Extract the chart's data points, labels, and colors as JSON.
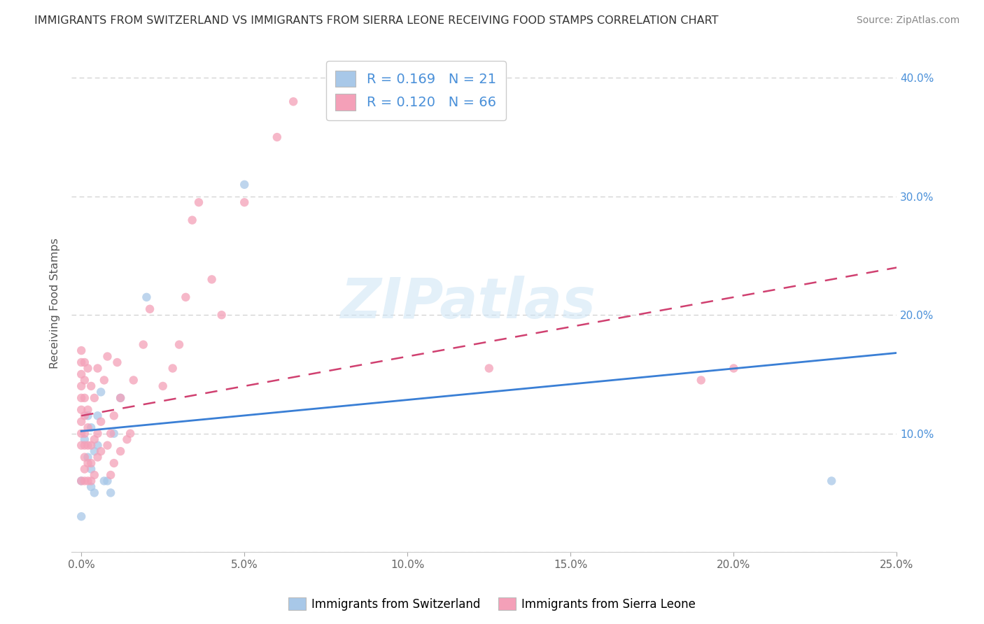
{
  "title": "IMMIGRANTS FROM SWITZERLAND VS IMMIGRANTS FROM SIERRA LEONE RECEIVING FOOD STAMPS CORRELATION CHART",
  "source": "Source: ZipAtlas.com",
  "ylabel": "Receiving Food Stamps",
  "xlabel_switzerland": "Immigrants from Switzerland",
  "xlabel_sierraleone": "Immigrants from Sierra Leone",
  "xlim": [
    0.0,
    0.25
  ],
  "ylim": [
    0.0,
    0.42
  ],
  "xticks": [
    0.0,
    0.05,
    0.1,
    0.15,
    0.2,
    0.25
  ],
  "yticks": [
    0.0,
    0.1,
    0.2,
    0.3,
    0.4
  ],
  "ytick_labels_right": [
    "",
    "10.0%",
    "20.0%",
    "30.0%",
    "40.0%"
  ],
  "xtick_labels": [
    "0.0%",
    "5.0%",
    "10.0%",
    "15.0%",
    "20.0%",
    "25.0%"
  ],
  "r_switzerland": 0.169,
  "n_switzerland": 21,
  "r_sierraleone": 0.12,
  "n_sierraleone": 66,
  "color_switzerland": "#a8c8e8",
  "color_sierraleone": "#f4a0b8",
  "line_color_switzerland": "#3a7fd5",
  "line_color_sierraleone": "#d04070",
  "watermark": "ZIPatlas",
  "switzerland_scatter_x": [
    0.0,
    0.0,
    0.001,
    0.002,
    0.002,
    0.003,
    0.003,
    0.003,
    0.004,
    0.004,
    0.005,
    0.005,
    0.006,
    0.007,
    0.008,
    0.009,
    0.01,
    0.012,
    0.02,
    0.05,
    0.23
  ],
  "switzerland_scatter_y": [
    0.06,
    0.03,
    0.095,
    0.115,
    0.08,
    0.105,
    0.07,
    0.055,
    0.085,
    0.05,
    0.115,
    0.09,
    0.135,
    0.06,
    0.06,
    0.05,
    0.1,
    0.13,
    0.215,
    0.31,
    0.06
  ],
  "sierraleone_scatter_x": [
    0.0,
    0.0,
    0.0,
    0.0,
    0.0,
    0.0,
    0.0,
    0.0,
    0.0,
    0.0,
    0.001,
    0.001,
    0.001,
    0.001,
    0.001,
    0.001,
    0.001,
    0.001,
    0.001,
    0.002,
    0.002,
    0.002,
    0.002,
    0.002,
    0.002,
    0.003,
    0.003,
    0.003,
    0.003,
    0.004,
    0.004,
    0.004,
    0.005,
    0.005,
    0.005,
    0.006,
    0.006,
    0.007,
    0.008,
    0.008,
    0.009,
    0.009,
    0.01,
    0.01,
    0.011,
    0.012,
    0.012,
    0.014,
    0.015,
    0.016,
    0.019,
    0.021,
    0.025,
    0.028,
    0.03,
    0.032,
    0.034,
    0.036,
    0.04,
    0.043,
    0.05,
    0.06,
    0.065,
    0.125,
    0.19,
    0.2
  ],
  "sierraleone_scatter_y": [
    0.09,
    0.1,
    0.11,
    0.12,
    0.13,
    0.14,
    0.15,
    0.16,
    0.17,
    0.06,
    0.06,
    0.07,
    0.08,
    0.09,
    0.1,
    0.115,
    0.13,
    0.145,
    0.16,
    0.06,
    0.075,
    0.09,
    0.105,
    0.12,
    0.155,
    0.06,
    0.075,
    0.09,
    0.14,
    0.065,
    0.095,
    0.13,
    0.08,
    0.1,
    0.155,
    0.085,
    0.11,
    0.145,
    0.09,
    0.165,
    0.065,
    0.1,
    0.075,
    0.115,
    0.16,
    0.085,
    0.13,
    0.095,
    0.1,
    0.145,
    0.175,
    0.205,
    0.14,
    0.155,
    0.175,
    0.215,
    0.28,
    0.295,
    0.23,
    0.2,
    0.295,
    0.35,
    0.38,
    0.155,
    0.145,
    0.155
  ],
  "sw_trend_x0": 0.0,
  "sw_trend_y0": 0.102,
  "sw_trend_x1": 0.25,
  "sw_trend_y1": 0.168,
  "sl_trend_x0": 0.0,
  "sl_trend_y0": 0.115,
  "sl_trend_x1": 0.12,
  "sl_trend_y1": 0.175
}
